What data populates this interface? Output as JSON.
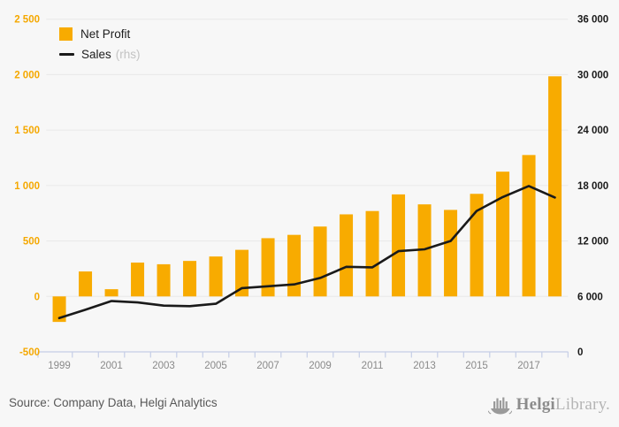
{
  "colors": {
    "background": "#f7f7f7",
    "accent": "#f8ab00",
    "line": "#1a1a1a",
    "gridline": "#e8e8e8",
    "axis": "#c5cde6",
    "x_label": "#8a8a8a",
    "left_label": "#f5a800",
    "right_label": "#1a1a1a"
  },
  "legend": {
    "net_profit": "Net Profit",
    "sales": "Sales",
    "sales_rhs": "(rhs)"
  },
  "footer": {
    "source": "Source: Company Data, Helgi Analytics",
    "logo_bold": "Helgi",
    "logo_light": "Library."
  },
  "chart_data": {
    "type": "bar",
    "title": "",
    "categories": [
      1999,
      2000,
      2001,
      2002,
      2003,
      2004,
      2005,
      2006,
      2007,
      2008,
      2009,
      2010,
      2011,
      2012,
      2013,
      2014,
      2015,
      2016,
      2017,
      2018
    ],
    "x_label_every": 2,
    "series": [
      {
        "name": "Net Profit",
        "type": "bar",
        "axis": "left",
        "color": "#f8ab00",
        "values": [
          -230,
          225,
          65,
          305,
          290,
          320,
          360,
          420,
          525,
          555,
          630,
          740,
          770,
          920,
          830,
          780,
          925,
          1125,
          1275,
          1985
        ]
      },
      {
        "name": "Sales (rhs)",
        "type": "line",
        "axis": "right",
        "color": "#1a1a1a",
        "values": [
          3650,
          4550,
          5500,
          5350,
          5000,
          4950,
          5200,
          6900,
          7100,
          7300,
          8000,
          9200,
          9150,
          10900,
          11100,
          12000,
          15250,
          16750,
          17950,
          16700
        ]
      }
    ],
    "left_axis": {
      "min": -500,
      "max": 2500,
      "tick_labels": [
        "2 500",
        "2 000",
        "1 500",
        "1 000",
        "500",
        "0",
        "-500"
      ]
    },
    "right_axis": {
      "min": 0,
      "max": 36000,
      "tick_labels": [
        "36 000",
        "30 000",
        "24 000",
        "18 000",
        "12 000",
        "6 000",
        "0"
      ]
    },
    "grid": "horizontal",
    "legend_position": "top-left"
  }
}
